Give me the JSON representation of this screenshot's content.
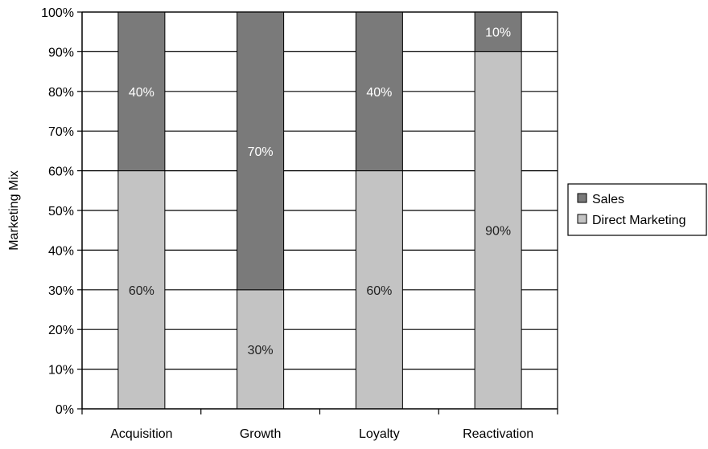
{
  "chart_data": {
    "type": "bar",
    "stacked": true,
    "categories": [
      "Acquisition",
      "Growth",
      "Loyalty",
      "Reactivation"
    ],
    "series": [
      {
        "name": "Direct Marketing",
        "values": [
          60,
          30,
          60,
          90
        ],
        "labels": [
          "60%",
          "30%",
          "60%",
          "90%"
        ],
        "color": "#c3c3c3"
      },
      {
        "name": "Sales",
        "values": [
          40,
          70,
          40,
          10
        ],
        "labels": [
          "40%",
          "70%",
          "40%",
          "10%"
        ],
        "color": "#7a7a7a"
      }
    ],
    "legend_order": [
      "Sales",
      "Direct Marketing"
    ],
    "ylabel": "Marketing Mix",
    "xlabel": "",
    "ylim": [
      0,
      100
    ],
    "yticks": [
      0,
      10,
      20,
      30,
      40,
      50,
      60,
      70,
      80,
      90,
      100
    ],
    "ytick_labels": [
      "0%",
      "10%",
      "20%",
      "30%",
      "40%",
      "50%",
      "60%",
      "70%",
      "80%",
      "90%",
      "100%"
    ],
    "grid": true,
    "legend_position": "right"
  }
}
